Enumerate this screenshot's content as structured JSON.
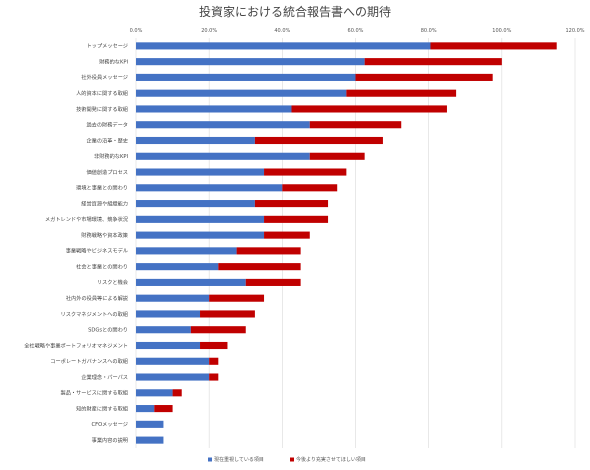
{
  "chart_data": {
    "type": "bar",
    "stacked": true,
    "orientation": "horizontal",
    "title": "投資家における統合報告書への期待",
    "xlim": [
      0,
      120
    ],
    "x_ticks": [
      "0.0%",
      "20.0%",
      "40.0%",
      "60.0%",
      "80.0%",
      "100.0%",
      "120.0%"
    ],
    "grid": "vertical",
    "legend_position": "bottom",
    "categories": [
      "トップメッセージ",
      "財務的なKPI",
      "社外役員メッセージ",
      "人的資本に関する取組",
      "技術開発に関する取組",
      "過去の財務データ",
      "企業の沿革・歴史",
      "非財務的なKPI",
      "価値創造プロセス",
      "環境と事業との関わり",
      "経営資源や組織能力",
      "メガトレンドや市場環境、競争状況",
      "財務戦略や資本政策",
      "事業戦略やビジネスモデル",
      "社会と事業との関わり",
      "リスクと機会",
      "社内外の役員等による解説",
      "リスクマネジメントへの取組",
      "SDGsとの関わり",
      "全社戦略や事業ポートフォリオマネジメント",
      "コーポレートガバナンスへの取組",
      "企業理念・パーパス",
      "製品・サービスに関する取組",
      "知的財産に関する取組",
      "CFOメッセージ",
      "事業内容の説明"
    ],
    "series": [
      {
        "name": "現在重視している項目",
        "color": "#4472c4",
        "values": [
          80.5,
          62.5,
          60,
          57.5,
          42.5,
          47.5,
          32.5,
          47.5,
          35,
          40,
          32.5,
          35,
          35,
          27.5,
          22.5,
          30,
          20,
          17.5,
          15,
          17.5,
          20,
          20,
          10,
          5,
          7.5,
          7.5
        ]
      },
      {
        "name": "今後より充実させてほしい項目",
        "color": "#c00000",
        "values": [
          34.5,
          37.5,
          37.5,
          30,
          42.5,
          25,
          35,
          15,
          22.5,
          15,
          20,
          17.5,
          12.5,
          17.5,
          22.5,
          15,
          15,
          15,
          15,
          7.5,
          2.5,
          2.5,
          2.5,
          5,
          0,
          0
        ]
      }
    ]
  }
}
